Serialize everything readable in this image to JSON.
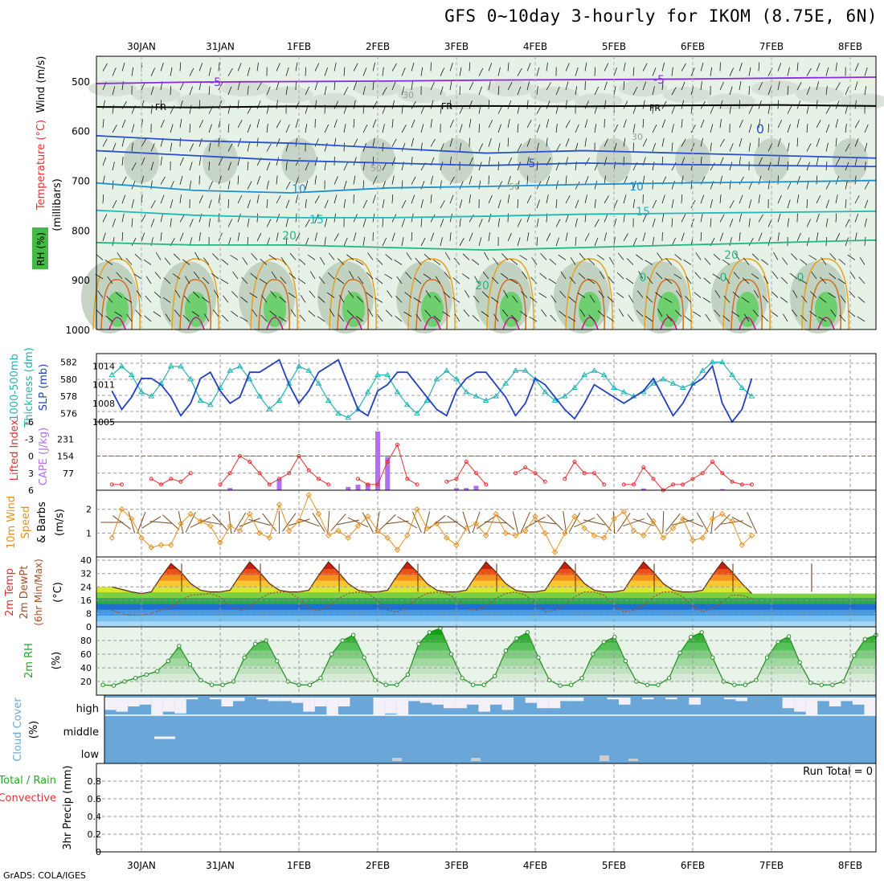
{
  "title": "GFS 0~10day 3-hourly for IKOM (8.75E, 6N)",
  "credit": "GrADS: COLA/IGES",
  "colors": {
    "wind_label": "#a0522d",
    "temp_label": "#e03030",
    "rh_label": "#22aa22",
    "thickness": "#22b2b2",
    "slp": "#2040c0",
    "lifted_index": "#e03030",
    "cape": "#b070f0",
    "wind10": "#e69020",
    "barb": "#7a4a20",
    "dewpoint": "#a0522d",
    "rh2m": "#228b22",
    "cloud": "#6aa7d8",
    "precip_total": "#22aa22",
    "precip_conv": "#e03030"
  },
  "chart_data": [
    {
      "id": "upper_air",
      "type": "heatmap",
      "ylabels": [
        "Wind (m/s)",
        "Temperature (°C)",
        "RH (%)",
        "(millibars)"
      ],
      "ylim": [
        1000,
        450
      ],
      "yticks": [
        500,
        600,
        700,
        800,
        900,
        1000
      ],
      "contours": [
        {
          "label": "-5",
          "color": "#8a2be2",
          "values": [
            505,
            502,
            501,
            500,
            498,
            497,
            496,
            494,
            492
          ]
        },
        {
          "label": "FR",
          "color": "#000000",
          "values": [
            552,
            553,
            551,
            551,
            550,
            551,
            549,
            548,
            550
          ]
        },
        {
          "label": "0",
          "color": "#2a4fd0",
          "values": [
            610,
            620,
            625,
            635,
            645,
            640,
            645,
            650,
            655
          ]
        },
        {
          "label": "5",
          "color": "#2a4fd0",
          "values": [
            640,
            650,
            660,
            665,
            670,
            665,
            668,
            670,
            672
          ]
        },
        {
          "label": "10",
          "color": "#1e90d0",
          "values": [
            705,
            720,
            725,
            715,
            712,
            708,
            705,
            703,
            700
          ]
        },
        {
          "label": "15",
          "color": "#20b8b8",
          "values": [
            760,
            770,
            775,
            775,
            772,
            768,
            766,
            764,
            762
          ]
        },
        {
          "label": "20",
          "color": "#20b880",
          "values": [
            825,
            830,
            830,
            835,
            840,
            835,
            830,
            825,
            820
          ]
        }
      ],
      "contour_labels": [
        "-5",
        "-5",
        "FR",
        "FR",
        "FR",
        "0",
        "5",
        "10",
        "10",
        "15",
        "15",
        "20",
        "20",
        "20",
        "30",
        "30",
        "50",
        "50",
        "0",
        "0",
        "0"
      ]
    },
    {
      "id": "slp_thickness",
      "type": "line",
      "ylabel_left": "1000-500mb Thickness (dm)",
      "ylabel_right": "SLP (mb)",
      "left_ticks": [
        576,
        578,
        580,
        582
      ],
      "left_lim": [
        575,
        583
      ],
      "right_ticks": [
        1005,
        1008,
        1011,
        1014
      ],
      "right_lim": [
        1005,
        1016
      ],
      "series": [
        {
          "name": "thickness",
          "values": [
            580.5,
            581.5,
            580.5,
            578.5,
            578,
            579.5,
            581.5,
            581.5,
            580,
            577.5,
            577,
            579,
            581,
            581.5,
            580,
            578,
            576.5,
            577.5,
            579.5,
            581.5,
            581,
            579.5,
            577.5,
            576,
            575.5,
            576.5,
            578.5,
            580.5,
            580.5,
            578.5,
            577,
            576,
            577.5,
            580,
            581,
            580,
            578.5,
            578,
            577.5,
            578,
            579.5,
            581,
            581,
            580,
            578.5,
            577.5,
            578,
            579,
            580.5,
            581,
            580.5,
            579,
            578.5,
            578,
            578.5,
            579.5,
            580,
            579.5,
            579,
            579.5,
            581,
            582,
            582,
            580.5,
            579,
            578
          ]
        },
        {
          "name": "slp",
          "values": [
            1010,
            1007,
            1009,
            1012,
            1012,
            1011,
            1009,
            1006,
            1008,
            1012,
            1013,
            1010,
            1008,
            1009,
            1013,
            1013,
            1014,
            1015,
            1011,
            1008,
            1010,
            1013,
            1014,
            1015,
            1011,
            1007,
            1006,
            1010,
            1011,
            1013,
            1013,
            1011,
            1009,
            1007,
            1006,
            1010,
            1012,
            1013,
            1013,
            1011,
            1009,
            1006,
            1008,
            1012,
            1011,
            1009,
            1007,
            1005.5,
            1008,
            1011,
            1010,
            1009,
            1008,
            1009,
            1010,
            1012,
            1009,
            1006,
            1008,
            1011,
            1012,
            1014,
            1008,
            1005,
            1007,
            1012
          ]
        }
      ]
    },
    {
      "id": "li_cape",
      "type": "line",
      "ylabel_left": "Lifted Index",
      "ylabel_right": "CAPE (J/kg)",
      "li_ticks": [
        "6",
        "3",
        "0",
        "-3",
        "-6"
      ],
      "li_lim": [
        6,
        -6
      ],
      "cape_ticks": [
        77,
        154,
        231
      ],
      "cape_lim": [
        0,
        308
      ],
      "li": [
        5,
        5,
        null,
        null,
        4,
        5,
        4,
        4.5,
        3,
        null,
        null,
        5,
        3,
        0,
        1,
        3,
        5,
        4,
        3,
        0,
        2.5,
        4,
        5,
        null,
        null,
        4,
        5,
        5,
        1,
        -2,
        4,
        5,
        null,
        null,
        4.5,
        4,
        1,
        3,
        5,
        null,
        null,
        3,
        2,
        3,
        4.5,
        null,
        4,
        1,
        3,
        3,
        5,
        null,
        5,
        5,
        2,
        4,
        6,
        5,
        5,
        4,
        3,
        1,
        3,
        4.5,
        5,
        5
      ],
      "cape": [
        0,
        0,
        0,
        0,
        0,
        0,
        0,
        0,
        0,
        0,
        0,
        0,
        10,
        0,
        0,
        0,
        0,
        50,
        0,
        0,
        0,
        0,
        0,
        0,
        15,
        25,
        30,
        265,
        150,
        0,
        0,
        0,
        0,
        0,
        0,
        10,
        10,
        20,
        0,
        0,
        0,
        0,
        0,
        0,
        0,
        0,
        0,
        0,
        0,
        0,
        0,
        0,
        0,
        0,
        8,
        0,
        0,
        0,
        0,
        0,
        0,
        0,
        5,
        0,
        0,
        0
      ]
    },
    {
      "id": "wind10m",
      "type": "line",
      "ylabel": "10m Wind Speed & Barbs (m/s)",
      "ticks": [
        1,
        2
      ],
      "ylim": [
        0,
        2.8
      ],
      "values": [
        0.8,
        2.0,
        1.6,
        0.8,
        0.4,
        0.5,
        0.5,
        1.4,
        1.8,
        1.5,
        1.3,
        0.6,
        1.3,
        1.1,
        1.8,
        1.0,
        0.8,
        2.2,
        1.1,
        1.5,
        2.6,
        1.8,
        0.9,
        1.1,
        0.8,
        1.3,
        1.7,
        1.1,
        0.8,
        0.3,
        0.9,
        2.0,
        1.2,
        1.4,
        0.8,
        0.5,
        1.2,
        1.4,
        0.9,
        1.8,
        1.0,
        0.9,
        1.1,
        1.7,
        1.0,
        0.2,
        1.0,
        1.7,
        1.2,
        0.9,
        0.8,
        1.6,
        1.9,
        1.1,
        0.9,
        1.5,
        0.8,
        1.2,
        1.6,
        0.7,
        0.8,
        1.6,
        1.8,
        1.5,
        0.5,
        0.9
      ]
    },
    {
      "id": "temp2m",
      "type": "area",
      "ylabel": "2m Temp 2m DewPt (6hr Min/Max) (°C)",
      "ticks": [
        0,
        8,
        16,
        24,
        32,
        40
      ],
      "ylim": [
        0,
        42
      ],
      "temp": [
        24,
        22.5,
        21,
        20,
        21,
        30,
        38,
        33,
        26,
        22,
        21,
        21,
        22,
        31,
        39,
        33,
        26,
        22,
        21,
        21,
        22,
        31,
        39,
        33,
        26,
        22,
        21,
        21,
        22,
        31,
        39,
        33,
        26,
        22,
        21,
        21,
        22,
        31,
        39,
        33,
        26,
        22,
        21,
        21,
        22,
        31,
        39,
        33,
        26,
        22,
        21,
        21,
        22,
        31,
        39,
        33,
        26,
        22,
        21,
        21,
        22,
        31,
        39,
        33,
        26,
        20
      ],
      "dewpt": [
        10,
        8,
        7,
        7,
        8,
        10,
        12,
        16,
        19,
        19.5,
        20,
        18,
        12,
        10,
        12,
        17,
        20,
        21,
        21,
        17,
        11,
        10,
        12,
        17,
        20,
        21,
        20,
        16,
        10,
        9,
        12,
        17,
        20,
        21,
        20,
        17,
        11,
        10,
        12,
        17,
        20,
        21,
        19,
        14,
        9,
        10,
        13,
        18,
        21,
        21,
        19,
        13,
        9,
        10,
        13,
        18,
        21,
        21,
        18,
        12,
        9,
        11,
        15,
        19,
        19,
        17
      ]
    },
    {
      "id": "rh2m",
      "type": "area",
      "ylabel": "2m RH (%)",
      "ticks": [
        20,
        40,
        60,
        80
      ],
      "ylim": [
        0,
        100
      ],
      "values": [
        15,
        14,
        20,
        25,
        30,
        35,
        50,
        72,
        45,
        22,
        15,
        15,
        20,
        55,
        75,
        80,
        50,
        20,
        15,
        15,
        25,
        60,
        80,
        88,
        55,
        22,
        15,
        15,
        30,
        75,
        92,
        98,
        60,
        25,
        15,
        15,
        28,
        65,
        83,
        92,
        55,
        22,
        14,
        15,
        25,
        60,
        78,
        85,
        50,
        20,
        15,
        15,
        25,
        62,
        85,
        92,
        55,
        20,
        15,
        15,
        22,
        55,
        78,
        86,
        48,
        18,
        15,
        15,
        20,
        58,
        82,
        88
      ]
    },
    {
      "id": "cloud",
      "type": "bar",
      "ylabel": "Cloud Cover (%)",
      "levels": [
        "high",
        "middle",
        "low"
      ],
      "high": [
        70,
        80,
        50,
        40,
        100,
        80,
        90,
        10,
        0,
        10,
        50,
        20,
        0,
        10,
        20,
        20,
        30,
        80,
        50,
        100,
        50,
        0,
        0,
        100,
        90,
        100,
        20,
        30,
        40,
        60,
        60,
        40,
        80,
        40,
        70,
        0,
        30,
        60,
        60,
        20,
        20,
        0,
        0,
        10,
        40,
        0,
        10,
        0,
        10,
        0,
        40,
        0,
        0,
        10,
        20,
        0,
        0,
        0,
        60,
        80,
        100,
        20,
        50,
        20,
        40,
        100
      ],
      "middle_low_note": ""
    },
    {
      "id": "precip",
      "type": "bar",
      "ylabel": "3hr Precip (mm)",
      "series_labels": [
        "Total / Rain",
        "Convective"
      ],
      "ticks": [
        0,
        0.2,
        0.4,
        0.6,
        0.8
      ],
      "ylim": [
        0,
        1.0
      ],
      "run_total": "Run Total = 0",
      "values": []
    }
  ],
  "x_axis": {
    "dates_top": [
      "30JAN",
      "31JAN",
      "1FEB",
      "2FEB",
      "3FEB",
      "4FEB",
      "5FEB",
      "6FEB",
      "7FEB",
      "8FEB"
    ],
    "dates_bottom": [
      "30JAN",
      "31JAN",
      "1FEB",
      "2FEB",
      "3FEB",
      "4FEB",
      "5FEB",
      "6FEB",
      "7FEB",
      "8FEB"
    ]
  },
  "labels": {
    "upper_wind": "Wind (m/s)",
    "upper_temp": "Temperature (°C)",
    "upper_rh": "RH (%)",
    "upper_mb": "(millibars)",
    "thick1": "1000-500mb",
    "thick2": "Thickness (dm)",
    "slp": "SLP (mb)",
    "li": "Lifted Index",
    "cape": "CAPE (J/kg)",
    "w10a": "10m Wind",
    "w10b": "Speed",
    "w10c": "& Barbs",
    "w10d": "(m/s)",
    "t2a": "2m Temp",
    "t2b": "2m DewPt",
    "t2c": "(6hr Min/Max)",
    "t2d": "(°C)",
    "rh2a": "2m RH",
    "rh2b": "(%)",
    "cc1": "Cloud Cover",
    "cc2": "(%)",
    "pr1": "Total / Rain",
    "pr2": "Convective",
    "pr3": "3hr Precip (mm)"
  }
}
